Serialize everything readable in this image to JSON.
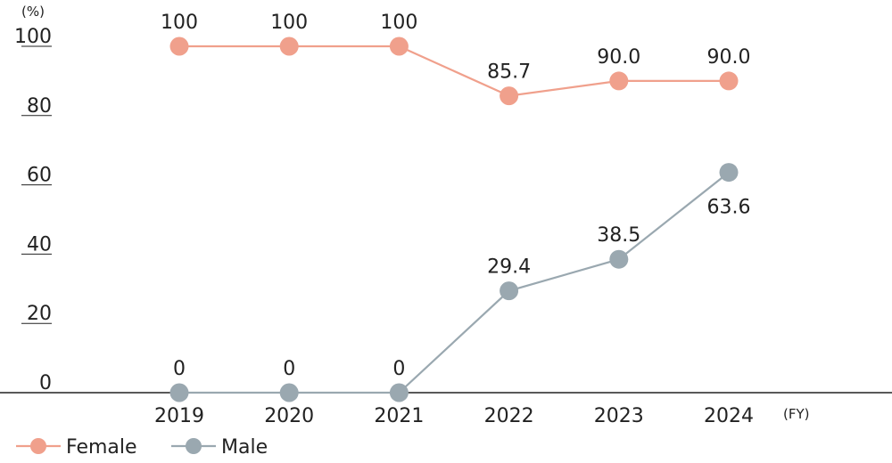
{
  "chart_data": {
    "type": "line",
    "y_unit": "(%)",
    "x_unit": "(FY)",
    "categories": [
      "2019",
      "2020",
      "2021",
      "2022",
      "2023",
      "2024"
    ],
    "y_ticks": [
      "0",
      "20",
      "40",
      "60",
      "80",
      "100"
    ],
    "ylim": [
      0,
      100
    ],
    "grid": false,
    "legend_position": "bottom-left",
    "series": [
      {
        "name": "Female",
        "color": "#f0a08c",
        "values": [
          100,
          100,
          100,
          85.7,
          90.0,
          90.0
        ],
        "labels": [
          "100",
          "100",
          "100",
          "85.7",
          "90.0",
          "90.0"
        ],
        "label_position": [
          "above",
          "above",
          "above",
          "above",
          "above",
          "above"
        ]
      },
      {
        "name": "Male",
        "color": "#9aa8b0",
        "values": [
          0,
          0,
          0,
          29.4,
          38.5,
          63.6
        ],
        "labels": [
          "0",
          "0",
          "0",
          "29.4",
          "38.5",
          "63.6"
        ],
        "label_position": [
          "above",
          "above",
          "above",
          "above",
          "above",
          "below"
        ]
      }
    ]
  }
}
